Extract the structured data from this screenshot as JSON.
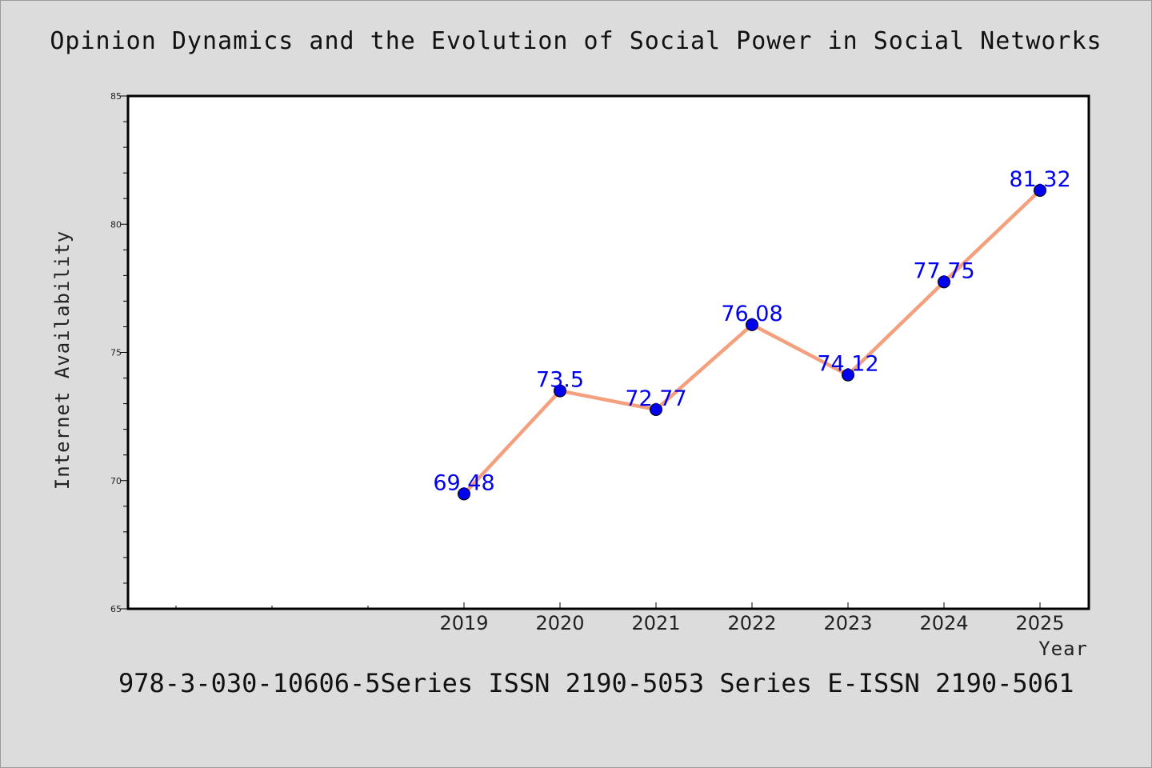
{
  "title": "Opinion Dynamics and the Evolution of Social Power in Social Networks",
  "footer": "978-3-030-10606-5Series ISSN 2190-5053 Series E-ISSN 2190-5061",
  "colors": {
    "background": "#dcdcdc",
    "plot_background": "#ffffff",
    "line": "#f4a07e",
    "marker": "#0000ee",
    "data_label": "#0000ee"
  },
  "chart_data": {
    "type": "line",
    "categories": [
      "2019",
      "2020",
      "2021",
      "2022",
      "2023",
      "2024",
      "2025"
    ],
    "values": [
      69.48,
      73.5,
      72.77,
      76.08,
      74.12,
      77.75,
      81.32
    ],
    "data_labels": [
      "69.48",
      "73.5",
      "72.77",
      "76.08",
      "74.12",
      "77.75",
      "81.32"
    ],
    "title": "Opinion Dynamics and the Evolution of Social Power in Social Networks",
    "xlabel": "Year",
    "ylabel": "Internet Availability",
    "ylim": [
      65,
      85
    ],
    "y_ticks": [
      65,
      70,
      75,
      80,
      85
    ],
    "grid": false,
    "legend": "none"
  }
}
